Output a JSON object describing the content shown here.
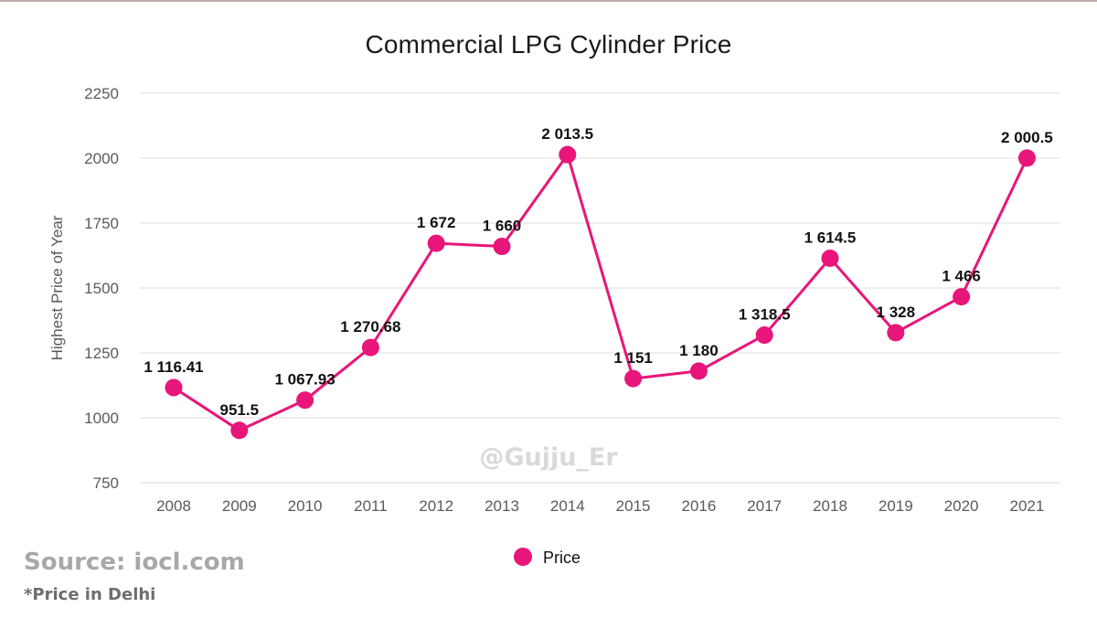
{
  "chart_data": {
    "type": "line",
    "title": "Commercial LPG Cylinder Price",
    "ylabel": "Highest Price of Year",
    "xlabel": "",
    "categories": [
      "2008",
      "2009",
      "2010",
      "2011",
      "2012",
      "2013",
      "2014",
      "2015",
      "2016",
      "2017",
      "2018",
      "2019",
      "2020",
      "2021"
    ],
    "series": [
      {
        "name": "Price",
        "values": [
          1116.41,
          951.5,
          1067.93,
          1270.68,
          1672,
          1660,
          2013.5,
          1151,
          1180,
          1318.5,
          1614.5,
          1328,
          1466,
          2000.5
        ],
        "labels": [
          "1 116.41",
          "951.5",
          "1 067.93",
          "1 270.68",
          "1 672",
          "1 660",
          "2 013.5",
          "1 151",
          "1 180",
          "1 318.5",
          "1 614.5",
          "1 328",
          "1 466",
          "2 000.5"
        ]
      }
    ],
    "ylim": [
      750,
      2250
    ],
    "yticks": [
      "750",
      "1000",
      "1250",
      "1500",
      "1750",
      "2000",
      "2250"
    ],
    "grid": true,
    "legend": "bottom-center",
    "color": "#e8157a",
    "watermark": "@Gujju_Er"
  },
  "footer": {
    "source": "Source: iocl.com",
    "note": "*Price in Delhi"
  }
}
